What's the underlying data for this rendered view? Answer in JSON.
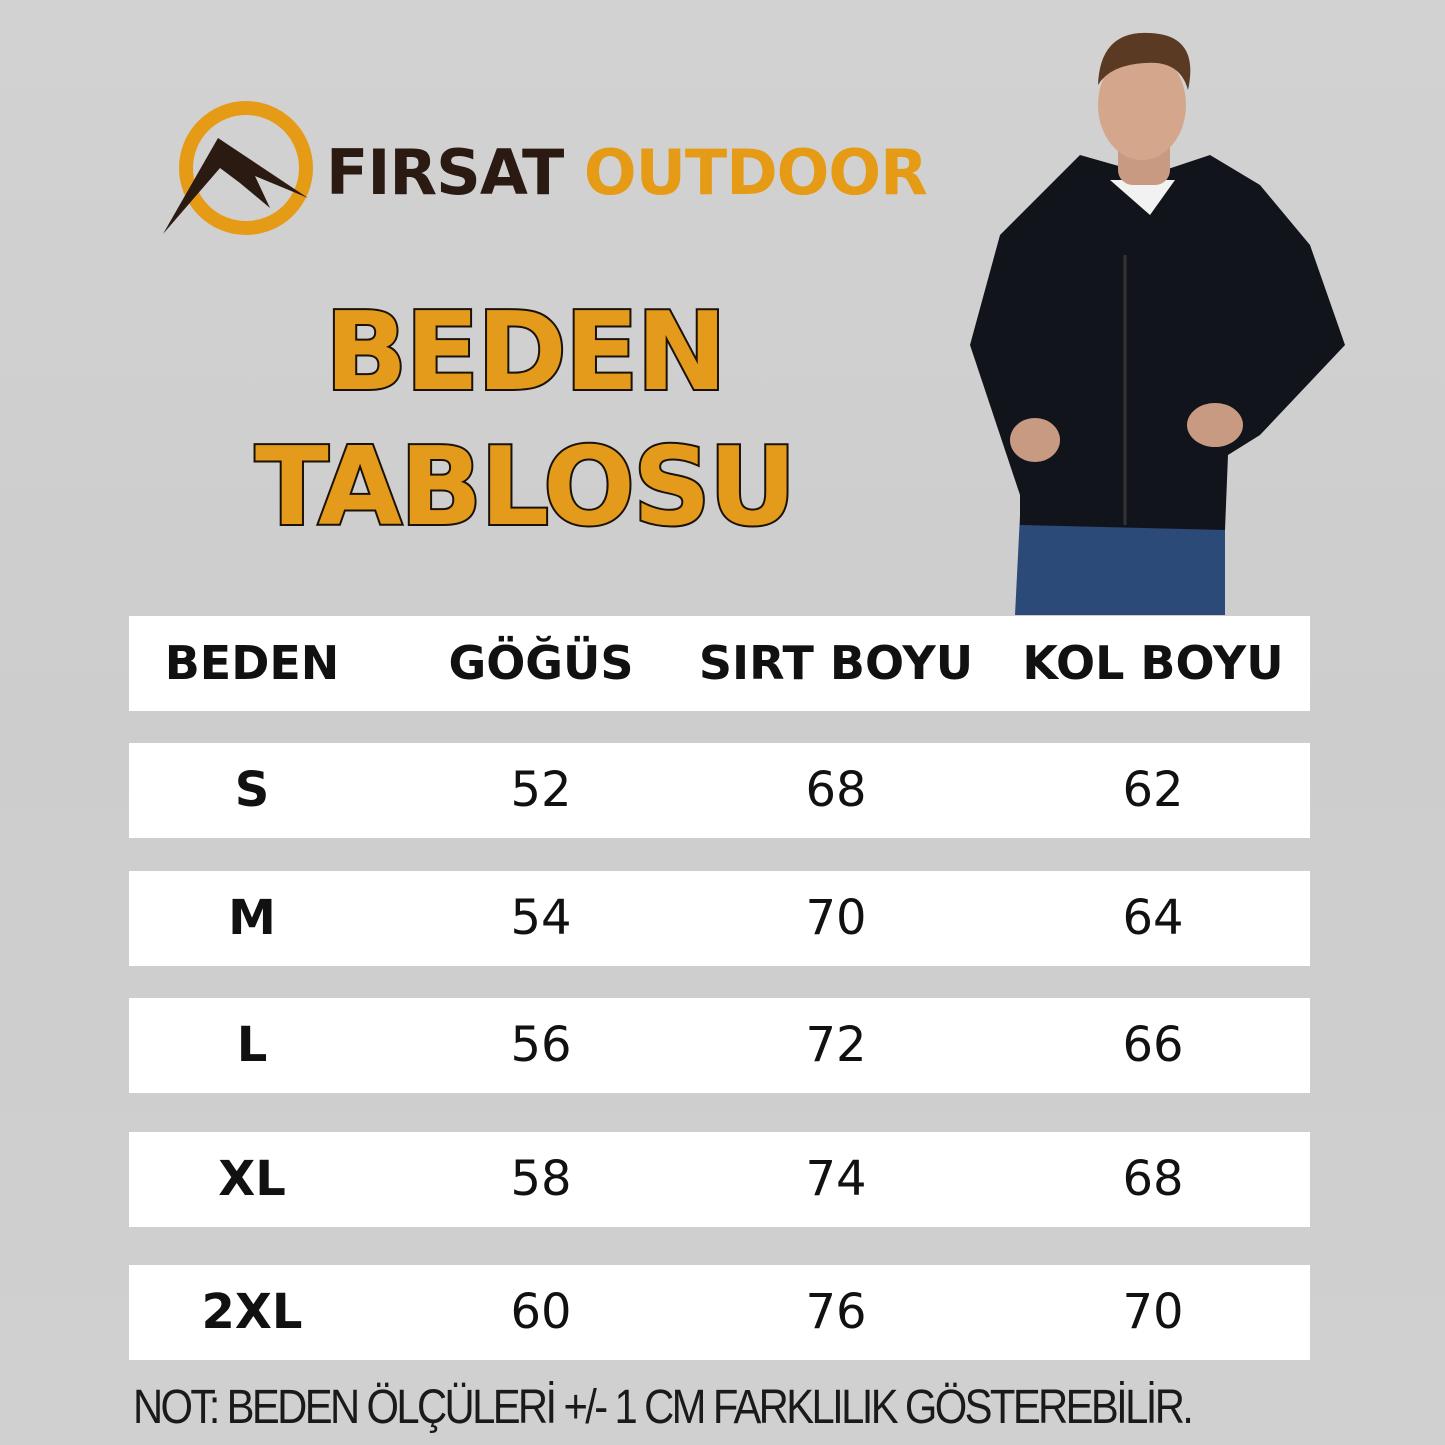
{
  "brand": {
    "name_part1": "FIRSAT",
    "name_part2": "OUTDOOR",
    "colors": {
      "dark": "#2a1a12",
      "accent": "#e69b16"
    }
  },
  "title": {
    "line1": "BEDEN",
    "line2": "TABLOSU"
  },
  "table": {
    "headers": [
      "BEDEN",
      "GÖĞÜS",
      "SIRT BOYU",
      "KOL BOYU"
    ],
    "rows": [
      [
        "S",
        "52",
        "68",
        "62"
      ],
      [
        "M",
        "54",
        "70",
        "64"
      ],
      [
        "L",
        "56",
        "72",
        "66"
      ],
      [
        "XL",
        "58",
        "74",
        "68"
      ],
      [
        "2XL",
        "60",
        "76",
        "70"
      ]
    ]
  },
  "note": "NOT: BEDEN ÖLÇÜLERİ +/- 1 CM FARKLILIK GÖSTEREBİLİR."
}
